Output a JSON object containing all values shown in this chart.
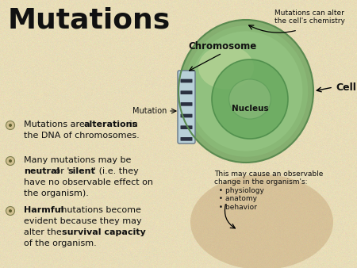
{
  "title": "Mutations",
  "title_fontsize": 26,
  "title_color": "#111111",
  "background_color": "#e8ddb8",
  "bullet_icon": "•",
  "bullet_icon_color": "#7a7a50",
  "text_color": "#111111",
  "body_fontsize": 8.0,
  "label_fontsize": 7.5,
  "diagram_labels": {
    "chromosome": "Chromosome",
    "mutation": "Mutation",
    "cell": "Cell",
    "nucleus": "Nucleus",
    "top_note": "Mutations can alter\nthe cell's chemistry",
    "bottom_note": "This may cause an observable\nchange in the organism's:\n  • physiology\n  • anatomy\n  • behavior"
  },
  "cell_outer_color": "#8aba78",
  "cell_inner_color": "#c8dca0",
  "cell_highlight": "#ddeec8",
  "nucleus_outer": "#6aaa68",
  "nucleus_inner": "#a8c890",
  "chromosome_light": "#b8d0d8",
  "chromosome_dark": "#2a3040"
}
